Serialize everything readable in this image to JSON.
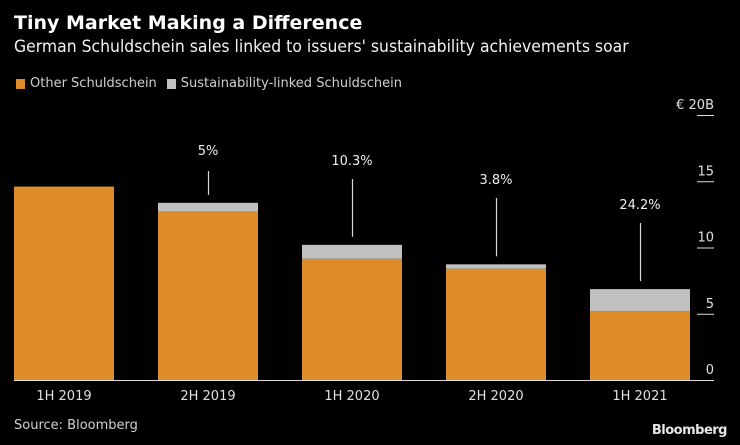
{
  "header": {
    "title": "Tiny Market Making a Difference",
    "subtitle": "German Schuldschein sales linked to issuers' sustainability achievements soar"
  },
  "footer": {
    "source": "Source: Bloomberg",
    "logo": "Bloomberg"
  },
  "colors": {
    "background": "#000000",
    "other": "#DE8C28",
    "sustainability": "#C0C0C0",
    "text": "#E6E6E6",
    "axis": "#DDDDDD"
  },
  "chart_data": {
    "type": "bar",
    "stacked": true,
    "title": "Tiny Market Making a Difference",
    "subtitle": "German Schuldschein sales linked to issuers' sustainability achievements soar",
    "xlabel": "",
    "ylabel": "",
    "y_unit_label": "€ 20B",
    "ylim": [
      0,
      20
    ],
    "yticks": [
      0,
      5,
      10,
      15,
      20
    ],
    "ytick_labels": [
      "0",
      "5",
      "10",
      "15",
      "€ 20B"
    ],
    "y_axis_side": "right",
    "grid": false,
    "legend_position": "top-left",
    "categories": [
      "1H 2019",
      "2H 2019",
      "1H 2020",
      "2H 2020",
      "1H 2021"
    ],
    "series": [
      {
        "name": "Other Schuldschein",
        "color": "#DE8C28",
        "values": [
          14.6,
          12.7,
          9.15,
          8.4,
          5.2
        ]
      },
      {
        "name": "Sustainability-linked Schuldschein",
        "color": "#C0C0C0",
        "values": [
          0,
          0.67,
          1.05,
          0.33,
          1.66
        ]
      }
    ],
    "annotations": [
      {
        "category": "2H 2019",
        "text": "5%"
      },
      {
        "category": "1H 2020",
        "text": "10.3%"
      },
      {
        "category": "2H 2020",
        "text": "3.8%"
      },
      {
        "category": "1H 2021",
        "text": "24.2%"
      }
    ],
    "source": "Source: Bloomberg"
  }
}
